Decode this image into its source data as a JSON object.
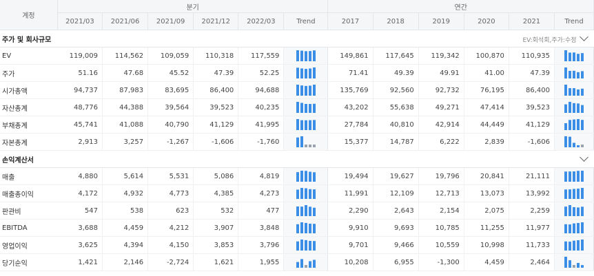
{
  "header": {
    "account_label": "계정",
    "quarterly_label": "분기",
    "annual_label": "연간",
    "quarters": [
      "2021/03",
      "2021/06",
      "2021/09",
      "2021/12",
      "2022/03"
    ],
    "years": [
      "2017",
      "2018",
      "2019",
      "2020",
      "2021"
    ],
    "trend_label": "Trend"
  },
  "colors": {
    "bar_positive": "#3a8ee6",
    "bar_negative": "#9aa3ad",
    "header_bg": "#f5f6f8"
  },
  "sections": [
    {
      "title": "주가 및 회사규모",
      "note": "EV:회석회,주가:수정",
      "rows": [
        {
          "label": "EV",
          "quarterly": [
            "119,009",
            "114,562",
            "109,059",
            "110,318",
            "117,559"
          ],
          "annual": [
            "149,861",
            "117,645",
            "119,342",
            "100,870",
            "110,935"
          ],
          "q_values": [
            119009,
            114562,
            109059,
            110318,
            117559
          ],
          "a_values": [
            149861,
            117645,
            119342,
            100870,
            110935
          ]
        },
        {
          "label": "주가",
          "quarterly": [
            "51.16",
            "47.68",
            "45.52",
            "47.39",
            "52.25"
          ],
          "annual": [
            "71.41",
            "49.39",
            "49.91",
            "41.00",
            "47.39"
          ],
          "q_values": [
            51.16,
            47.68,
            45.52,
            47.39,
            52.25
          ],
          "a_values": [
            71.41,
            49.39,
            49.91,
            41.0,
            47.39
          ]
        },
        {
          "label": "시가총액",
          "quarterly": [
            "94,737",
            "87,983",
            "83,695",
            "86,400",
            "94,688"
          ],
          "annual": [
            "135,769",
            "92,560",
            "92,732",
            "76,195",
            "86,400"
          ],
          "q_values": [
            94737,
            87983,
            83695,
            86400,
            94688
          ],
          "a_values": [
            135769,
            92560,
            92732,
            76195,
            86400
          ]
        },
        {
          "label": "자산총계",
          "quarterly": [
            "48,776",
            "44,388",
            "39,564",
            "39,523",
            "40,235"
          ],
          "annual": [
            "43,202",
            "55,638",
            "49,271",
            "47,414",
            "39,523"
          ],
          "q_values": [
            48776,
            44388,
            39564,
            39523,
            40235
          ],
          "a_values": [
            43202,
            55638,
            49271,
            47414,
            39523
          ]
        },
        {
          "label": "부채총계",
          "quarterly": [
            "45,741",
            "41,088",
            "40,790",
            "41,129",
            "41,995"
          ],
          "annual": [
            "27,784",
            "40,810",
            "42,914",
            "44,449",
            "41,129"
          ],
          "q_values": [
            45741,
            41088,
            40790,
            41129,
            41995
          ],
          "a_values": [
            27784,
            40810,
            42914,
            44449,
            41129
          ]
        },
        {
          "label": "자본총계",
          "quarterly": [
            "2,913",
            "3,257",
            "-1,267",
            "-1,606",
            "-1,760"
          ],
          "annual": [
            "15,377",
            "14,787",
            "6,222",
            "2,839",
            "-1,606"
          ],
          "q_values": [
            2913,
            3257,
            -1267,
            -1606,
            -1760
          ],
          "a_values": [
            15377,
            14787,
            6222,
            2839,
            -1606
          ]
        }
      ]
    },
    {
      "title": "손익계산서",
      "note": "",
      "rows": [
        {
          "label": "매출",
          "quarterly": [
            "4,880",
            "5,614",
            "5,531",
            "5,086",
            "4,819"
          ],
          "annual": [
            "19,494",
            "19,627",
            "19,796",
            "20,841",
            "21,111"
          ],
          "q_values": [
            4880,
            5614,
            5531,
            5086,
            4819
          ],
          "a_values": [
            19494,
            19627,
            19796,
            20841,
            21111
          ]
        },
        {
          "label": "매출총이익",
          "quarterly": [
            "4,172",
            "4,932",
            "4,773",
            "4,385",
            "4,273"
          ],
          "annual": [
            "11,991",
            "12,109",
            "12,713",
            "13,073",
            "13,992"
          ],
          "q_values": [
            4172,
            4932,
            4773,
            4385,
            4273
          ],
          "a_values": [
            11991,
            12109,
            12713,
            13073,
            13992
          ]
        },
        {
          "label": "판관비",
          "quarterly": [
            "547",
            "538",
            "623",
            "532",
            "477"
          ],
          "annual": [
            "2,290",
            "2,643",
            "2,154",
            "2,075",
            "2,259"
          ],
          "q_values": [
            547,
            538,
            623,
            532,
            477
          ],
          "a_values": [
            2290,
            2643,
            2154,
            2075,
            2259
          ]
        },
        {
          "label": "EBITDA",
          "quarterly": [
            "3,688",
            "4,459",
            "4,212",
            "3,907",
            "3,848"
          ],
          "annual": [
            "9,910",
            "9,693",
            "10,785",
            "11,255",
            "11,977"
          ],
          "q_values": [
            3688,
            4459,
            4212,
            3907,
            3848
          ],
          "a_values": [
            9910,
            9693,
            10785,
            11255,
            11977
          ]
        },
        {
          "label": "영업이익",
          "quarterly": [
            "3,625",
            "4,394",
            "4,150",
            "3,853",
            "3,796"
          ],
          "annual": [
            "9,701",
            "9,466",
            "10,559",
            "10,998",
            "11,733"
          ],
          "q_values": [
            3625,
            4394,
            4150,
            3853,
            3796
          ],
          "a_values": [
            9701,
            9466,
            10559,
            10998,
            11733
          ]
        },
        {
          "label": "당기순익",
          "quarterly": [
            "1,421",
            "2,146",
            "-2,724",
            "1,621",
            "1,955"
          ],
          "annual": [
            "10,208",
            "6,955",
            "-1,300",
            "4,459",
            "2,464"
          ],
          "q_values": [
            1421,
            2146,
            -2724,
            1621,
            1955
          ],
          "a_values": [
            10208,
            6955,
            -1300,
            4459,
            2464
          ]
        }
      ]
    }
  ]
}
